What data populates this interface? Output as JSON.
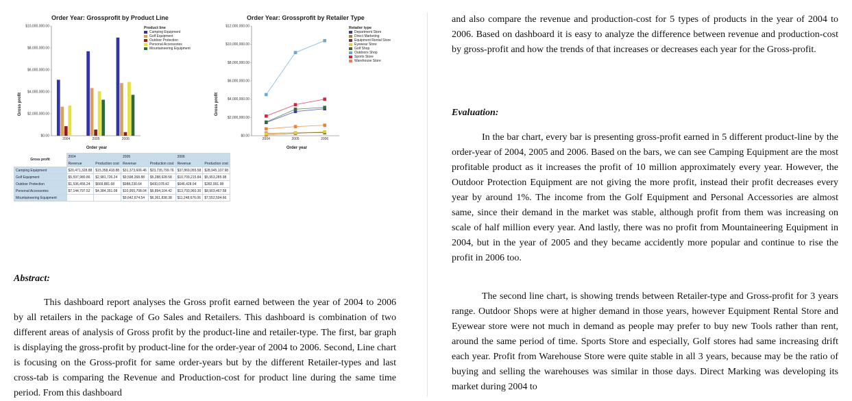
{
  "charts": {
    "bar": {
      "title": "Order Year: Grossprofit by Product Line",
      "ylabel": "Gross profit",
      "xlabel": "Order year",
      "y_ticks": [
        "$0.00",
        "$2,000,000.00",
        "$4,000,000.00",
        "$6,000,000.00",
        "$8,000,000.00",
        "$10,000,000.00"
      ],
      "legend_title": "Product line"
    },
    "line": {
      "title": "Order Year: Grossprofit by Retailer Type",
      "ylabel": "Gross profit",
      "xlabel": "Order year",
      "y_ticks": [
        "$0.00",
        "$2,000,000.00",
        "$4,000,000.00",
        "$6,000,000.00",
        "$8,000,000.00",
        "$10,000,000.00",
        "$12,000,000.00"
      ],
      "legend_title": "Retailer type"
    }
  },
  "chart_data": [
    {
      "type": "bar",
      "title": "Order Year: Grossprofit by Product Line",
      "xlabel": "Order year",
      "ylabel": "Gross profit",
      "ylim": [
        0,
        10000000
      ],
      "categories": [
        "2004",
        "2005",
        "2006"
      ],
      "series": [
        {
          "name": "Camping Equipment",
          "color": "#3333a8",
          "values": [
            5100000,
            7700000,
            8950000
          ]
        },
        {
          "name": "Golf Equipment",
          "color": "#d9a25b",
          "values": [
            2650000,
            4350000,
            4800000
          ]
        },
        {
          "name": "Outdoor Protection",
          "color": "#8b1e1e",
          "values": [
            870000,
            560000,
            330000
          ]
        },
        {
          "name": "Personal Accessories",
          "color": "#e8e040",
          "values": [
            2750000,
            4050000,
            4900000
          ]
        },
        {
          "name": "Mountaineering Equipment",
          "color": "#2e6b3a",
          "values": [
            0,
            3280000,
            3730000
          ]
        }
      ]
    },
    {
      "type": "line",
      "title": "Order Year: Grossprofit by Retailer Type",
      "xlabel": "Order year",
      "ylabel": "Gross profit",
      "ylim": [
        0,
        12000000
      ],
      "x": [
        "2004",
        "2005",
        "2006"
      ],
      "series": [
        {
          "name": "Department Store",
          "color": "#3a3ab0",
          "values": [
            1450000,
            2650000,
            2950000
          ]
        },
        {
          "name": "Direct Marketing",
          "color": "#b07a3a",
          "values": [
            80000,
            250000,
            420000
          ]
        },
        {
          "name": "Equipment Rental Store",
          "color": "#8b2a2a",
          "values": [
            250000,
            320000,
            330000
          ]
        },
        {
          "name": "Eyewear Store",
          "color": "#e0d040",
          "values": [
            200000,
            330000,
            420000
          ]
        },
        {
          "name": "Golf Shop",
          "color": "#3a6a3a",
          "values": [
            1500000,
            2900000,
            3100000
          ]
        },
        {
          "name": "Outdoors Shop",
          "color": "#6aa8d8",
          "values": [
            4500000,
            9100000,
            10400000
          ]
        },
        {
          "name": "Sports Store",
          "color": "#d8243a",
          "values": [
            2150000,
            3400000,
            4000000
          ]
        },
        {
          "name": "Warehouse Store",
          "color": "#e8843a",
          "values": [
            750000,
            1000000,
            1150000
          ]
        }
      ]
    }
  ],
  "crosstab": {
    "corner": "Gross profit",
    "years": [
      "2004",
      "2005",
      "2006"
    ],
    "subheaders": [
      "Revenue",
      "Production cost"
    ],
    "rows": [
      {
        "label": "Camping Equipment",
        "cells": [
          "$20,471,328.88",
          "$15,358,418.88",
          "$31,373,606.46",
          "$23,735,799.76",
          "$37,869,055.58",
          "$28,945,107.98"
        ]
      },
      {
        "label": "Golf Equipment",
        "cells": [
          "$5,597,980.86",
          "$2,981,726.24",
          "$9,598,268.88",
          "$5,288,928.58",
          "$10,709,215.84",
          "$5,953,285.98"
        ]
      },
      {
        "label": "Outdoor Protection",
        "cells": [
          "$1,536,456.24",
          "$669,881.68",
          "$988,230.64",
          "$430,078.42",
          "$646,428.04",
          "$282,991.98"
        ]
      },
      {
        "label": "Personal Accessories",
        "cells": [
          "$7,144,797.52",
          "$4,384,351.08",
          "$10,955,708.04",
          "$6,894,104.42",
          "$13,793,960.30",
          "$8,903,467.58"
        ]
      },
      {
        "label": "Mountaineering Equipment",
        "cells": [
          "",
          "",
          "$9,642,674.54",
          "$6,361,838.38",
          "$11,248,676.06",
          "$7,552,594.66"
        ]
      }
    ]
  },
  "abstract": {
    "heading": "Abstract:",
    "text": "This dashboard report analyses the Gross profit earned between the year of 2004 to 2006 by all retailers in the package of Go Sales and Retailers. This dashboard is combination of two different areas of analysis of Gross profit by the product-line and retailer-type. The first, bar graph is displaying the gross-profit by product-line for the order-year of 2004 to 2006. Second, Line chart is focusing on the Gross-profit for same order-years but by the different Retailer-types and last cross-tab is comparing the Revenue and Production-cost for product line during the same time period. From this dashboard"
  },
  "right_intro": "and also compare the revenue and production-cost for 5 types of products in the year of 2004 to 2006. Based on dashboard it is easy to analyze the difference between revenue and production-cost by gross-profit and how the trends of that increases or decreases each year for the Gross-profit.",
  "evaluation": {
    "heading": "Evaluation:",
    "p1": "In the bar chart, every bar is presenting gross-profit earned in 5 different product-line by the order-year of 2004, 2005 and 2006. Based on the bars, we can see Camping Equipment are the most profitable product as it increases the profit of 10 million approximately every year. However, the Outdoor Protection Equipment are not giving the more profit, instead their profit decreases every year by around 1%. The income from the Golf Equipment and Personal Accessories are almost same, since their demand in the market was stable, although profit from them was increasing on scale of half million every year. And lastly, there was no profit from Mountaineering Equipment in 2004, but in the year of 2005 and they became accidently more popular and continue to rise the profit in 2006 too.",
    "p2": "The second line chart, is showing trends between Retailer-type and Gross-profit for 3 years range. Outdoor Shops were at higher demand in those years, however Equipment Rental Store and Eyewear store were not much in demand as people may prefer to buy new Tools rather than rent, around the same period of time. Sports Store and especially, Golf stores had same increasing drift each year. Profit from Warehouse Store were quite stable in all 3 years, because may be the ratio of buying and selling the warehouses was similar in those days. Direct Marking was developing its market during 2004 to"
  }
}
